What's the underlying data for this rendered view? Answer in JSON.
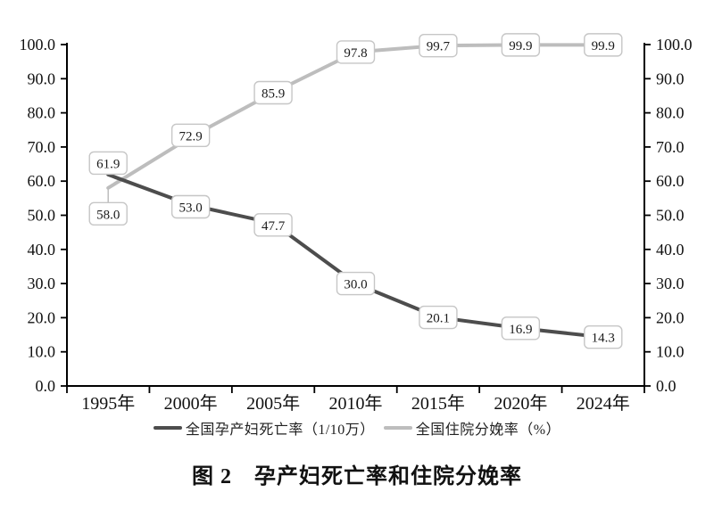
{
  "chart_data": {
    "type": "line",
    "title": "图 2　孕产妇死亡率和住院分娩率",
    "categories": [
      "1995年",
      "2000年",
      "2005年",
      "2010年",
      "2015年",
      "2020年",
      "2024年"
    ],
    "series": [
      {
        "name": "全国孕产妇死亡率（1/10万）",
        "color": "#4d4d4d",
        "values": [
          61.9,
          53.0,
          47.7,
          30.0,
          20.1,
          16.9,
          14.3
        ],
        "label_offsets": [
          [
            0,
            -13
          ],
          [
            0,
            2
          ],
          [
            0,
            2
          ],
          [
            0,
            0
          ],
          [
            0,
            0
          ],
          [
            0,
            0
          ],
          [
            0,
            0
          ]
        ],
        "label_leaders": [
          false,
          false,
          false,
          false,
          false,
          false,
          false
        ]
      },
      {
        "name": "全国住院分娩率（%）",
        "color": "#bdbdbd",
        "values": [
          58.0,
          72.9,
          85.9,
          97.8,
          99.7,
          99.9,
          99.9
        ],
        "label_offsets": [
          [
            0,
            29
          ],
          [
            0,
            -2
          ],
          [
            0,
            0
          ],
          [
            0,
            0
          ],
          [
            0,
            0
          ],
          [
            0,
            0
          ],
          [
            0,
            0
          ]
        ],
        "label_leaders": [
          true,
          false,
          false,
          false,
          false,
          false,
          false
        ]
      }
    ],
    "xlabel": "",
    "ylabel": "",
    "ylim": [
      0,
      100
    ],
    "ytick_step": 10,
    "ytick_labels": [
      "0.0",
      "10.0",
      "20.0",
      "30.0",
      "40.0",
      "50.0",
      "60.0",
      "70.0",
      "80.0",
      "90.0",
      "100.0"
    ],
    "y_axis_mirrored_right": true,
    "grid": false,
    "legend_position": "bottom",
    "data_labels": true,
    "data_label_style": {
      "box_fill": "#ffffff",
      "box_border": "#c6c6c6",
      "text_color": "#1a1a1a"
    },
    "axis_color": "#000000"
  }
}
